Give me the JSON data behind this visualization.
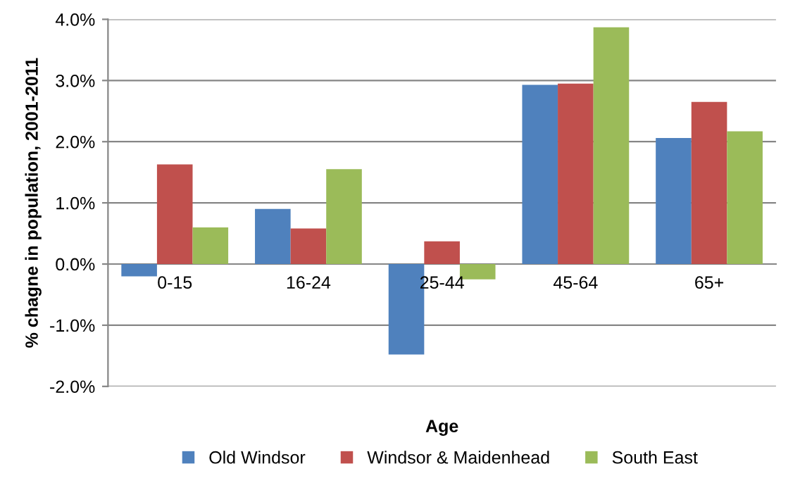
{
  "chart_data": {
    "type": "bar",
    "xlabel": "Age",
    "ylabel": "% chagne in population, 2001-2011",
    "categories": [
      "0-15",
      "16-24",
      "25-44",
      "45-64",
      "65+"
    ],
    "series": [
      {
        "name": "Old Windsor",
        "color": "#4f81bd",
        "values": [
          -0.2,
          0.9,
          -1.48,
          2.93,
          2.06
        ]
      },
      {
        "name": "Windsor & Maidenhead",
        "color": "#c0504d",
        "values": [
          1.63,
          0.58,
          0.37,
          2.95,
          2.65
        ]
      },
      {
        "name": "South East",
        "color": "#9bbb59",
        "values": [
          0.6,
          1.55,
          -0.25,
          3.87,
          2.17
        ]
      }
    ],
    "ylim": [
      -2,
      4
    ],
    "yticks": [
      {
        "value": -2,
        "label": "-2.0%"
      },
      {
        "value": -1,
        "label": "-1.0%"
      },
      {
        "value": 0,
        "label": "0.0%"
      },
      {
        "value": 1,
        "label": "1.0%"
      },
      {
        "value": 2,
        "label": "2.0%"
      },
      {
        "value": 3,
        "label": "3.0%"
      },
      {
        "value": 4,
        "label": "4.0%"
      }
    ],
    "grid": "y",
    "legend": "bottom"
  }
}
